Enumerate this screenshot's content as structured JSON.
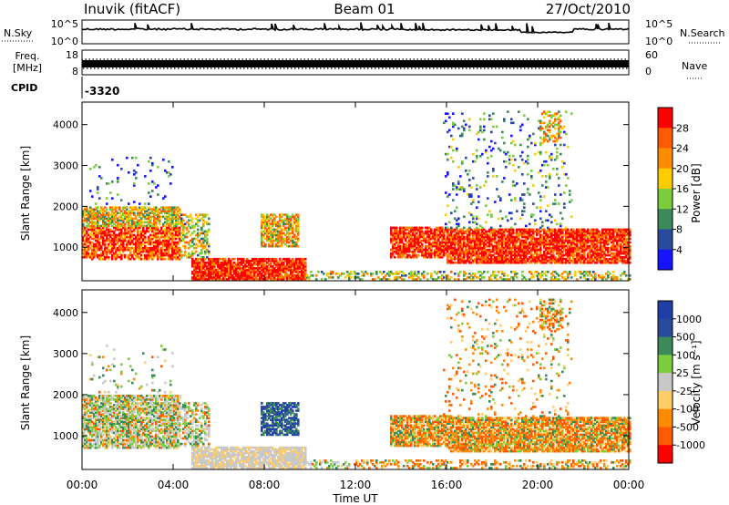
{
  "header": {
    "station": "Inuvik (fitACF)",
    "beam": "Beam 01",
    "date": "27/Oct/2010"
  },
  "strips": {
    "nsky": {
      "label": "N.Sky",
      "ticks": [
        "10^5",
        "10^0"
      ],
      "right_label": "N.Search",
      "right_ticks": [
        "10^5",
        "10^0"
      ]
    },
    "freq": {
      "label_line1": "Freq.",
      "label_line2": "[MHz]",
      "ticks": [
        "18",
        "8"
      ],
      "right_label": "Nave",
      "right_ticks": [
        "60",
        "0"
      ]
    },
    "cpid": {
      "label": "CPID",
      "value": "-3320"
    }
  },
  "colors": {
    "power": [
      "#1414ff",
      "#2a4aa0",
      "#3a8a5a",
      "#7ccc3c",
      "#ffcc00",
      "#ff8c00",
      "#ff5a00",
      "#ff0000"
    ],
    "velocity": [
      "#ff0000",
      "#ff5a00",
      "#ff8c00",
      "#ffcc66",
      "#c8c8c8",
      "#7ccc3c",
      "#3a8a5a",
      "#2a4aa0",
      "#1f3fa8"
    ]
  },
  "chart_data": [
    {
      "type": "heatmap",
      "title": "",
      "ylabel": "Slant Range [km]",
      "ylim": [
        180,
        4550
      ],
      "yticks": [
        "1000",
        "2000",
        "3000",
        "4000"
      ],
      "colorbar": {
        "label": "Power [dB]",
        "ticks": [
          "4",
          "8",
          "12",
          "16",
          "20",
          "24",
          "28"
        ]
      },
      "description_regions": [
        {
          "t0": 0.0,
          "t1": 4.2,
          "r0": 700,
          "r1": 2000,
          "level": "mixed-high"
        },
        {
          "t0": 4.8,
          "t1": 9.8,
          "r0": 250,
          "r1": 700,
          "level": "high"
        },
        {
          "t0": 7.8,
          "t1": 9.6,
          "r0": 1000,
          "r1": 1800,
          "level": "mixed"
        },
        {
          "t0": 13.5,
          "t1": 16.2,
          "r0": 700,
          "r1": 1500,
          "level": "high"
        },
        {
          "t0": 16.0,
          "t1": 24.0,
          "r0": 600,
          "r1": 1500,
          "level": "high"
        },
        {
          "t0": 15.5,
          "t1": 21.5,
          "r0": 1500,
          "r1": 4300,
          "level": "sparse"
        }
      ]
    },
    {
      "type": "heatmap",
      "title": "",
      "ylabel": "Slant Range [km]",
      "xlabel": "Time UT",
      "xticks": [
        "00:00",
        "04:00",
        "08:00",
        "12:00",
        "16:00",
        "20:00",
        "00:00"
      ],
      "ylim": [
        180,
        4550
      ],
      "yticks": [
        "1000",
        "2000",
        "3000",
        "4000"
      ],
      "colorbar": {
        "label": "Velocity [m s⁻¹]",
        "ticks": [
          "1000",
          "500",
          "100",
          "25",
          "-25",
          "-100",
          "-500",
          "-1000"
        ]
      }
    }
  ]
}
